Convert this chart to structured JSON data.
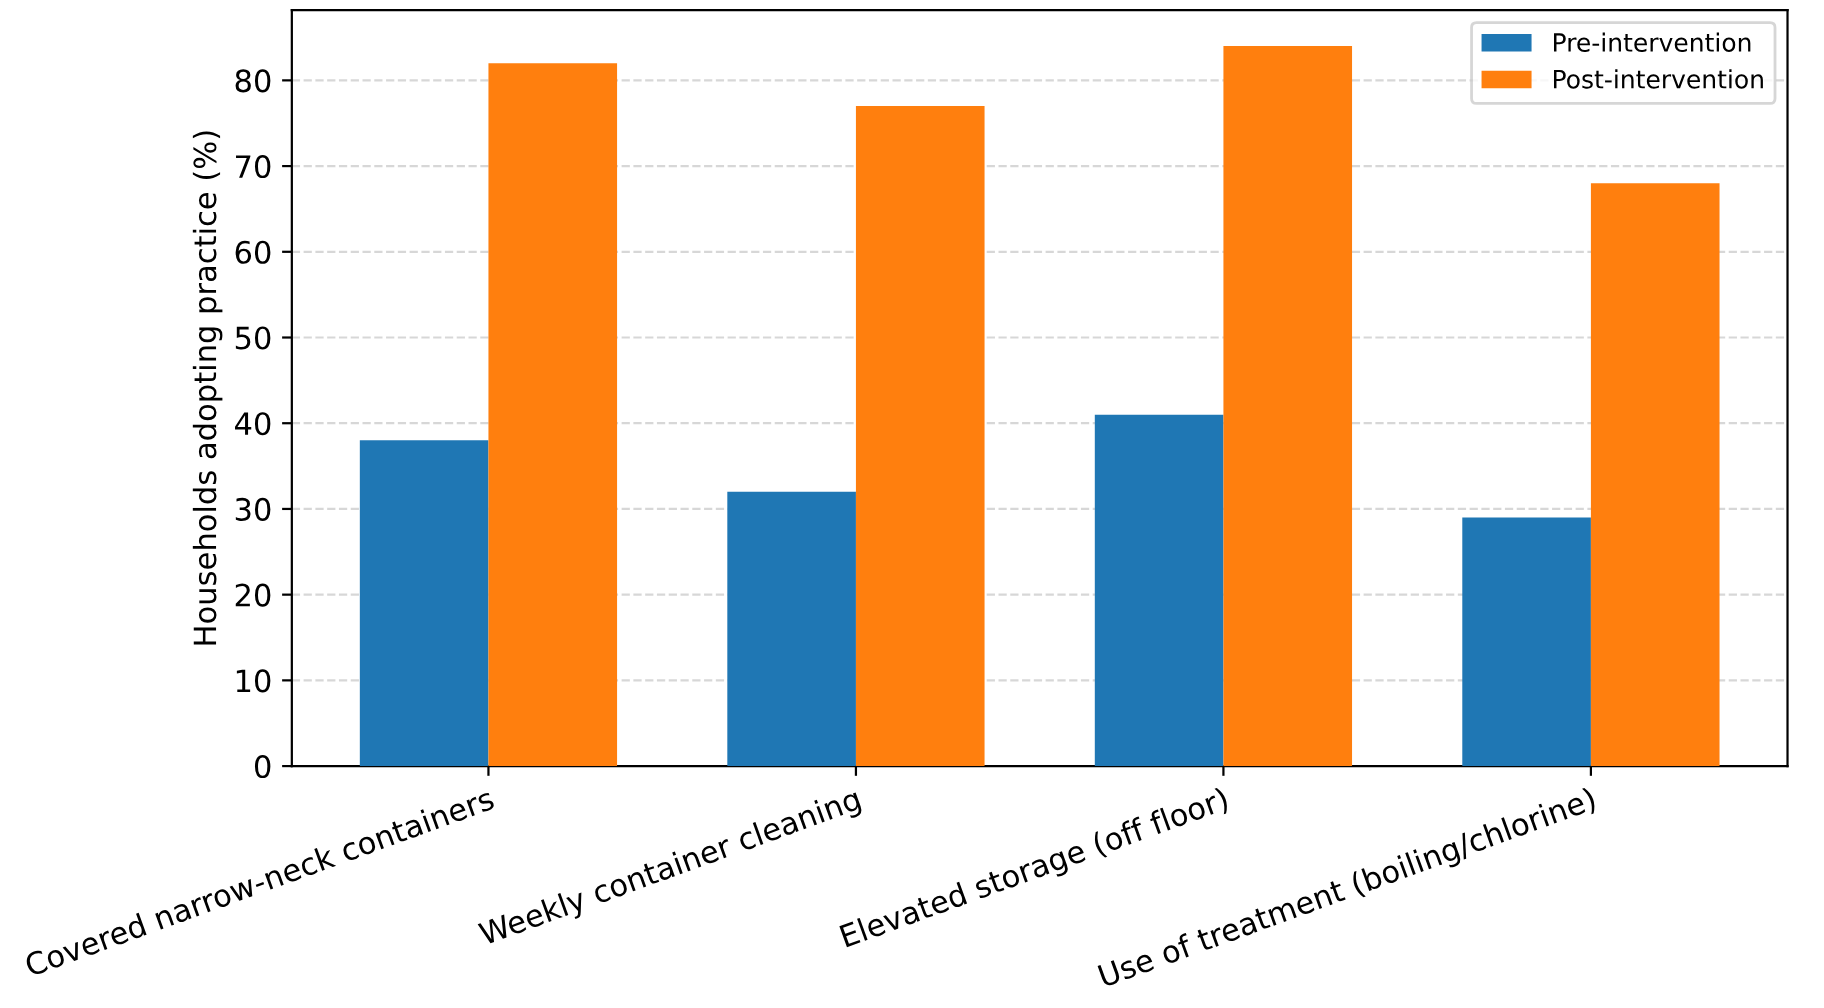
{
  "chart_data": {
    "type": "bar",
    "ylabel": "Households adopting practice (%)",
    "categories": [
      "Covered narrow-neck containers",
      "Weekly container cleaning",
      "Elevated storage (off floor)",
      "Use of treatment (boiling/chlorine)"
    ],
    "series": [
      {
        "name": "Pre-intervention",
        "color": "#1f77b4",
        "values": [
          38,
          32,
          41,
          29
        ]
      },
      {
        "name": "Post-intervention",
        "color": "#ff7f0e",
        "values": [
          82,
          77,
          84,
          68
        ]
      }
    ],
    "ylim": [
      0,
      88.2
    ],
    "yticks": [
      0,
      10,
      20,
      30,
      40,
      50,
      60,
      70,
      80
    ],
    "grid": "y",
    "legend": "top right"
  }
}
